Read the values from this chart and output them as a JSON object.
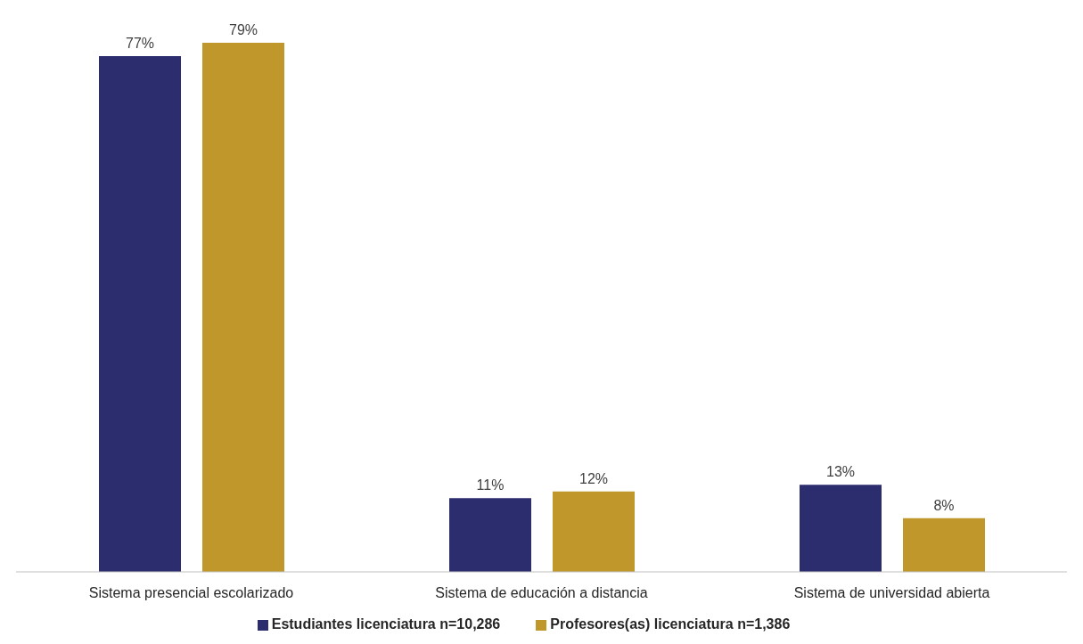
{
  "chart_data": {
    "type": "bar",
    "categories": [
      "Sistema presencial escolarizado",
      "Sistema de educación a distancia",
      "Sistema de universidad abierta"
    ],
    "series": [
      {
        "name": "Estudiantes licenciatura n=10,286",
        "color": "#2b2d6e",
        "values": [
          77,
          11,
          13
        ],
        "value_labels": [
          "77%",
          "11%",
          "13%"
        ]
      },
      {
        "name": "Profesores(as) licenciatura n=1,386",
        "color": "#c0972a",
        "values": [
          79,
          12,
          8
        ],
        "value_labels": [
          "79%",
          "12%",
          "8%"
        ]
      }
    ],
    "grid": false,
    "legend": "bottom"
  }
}
